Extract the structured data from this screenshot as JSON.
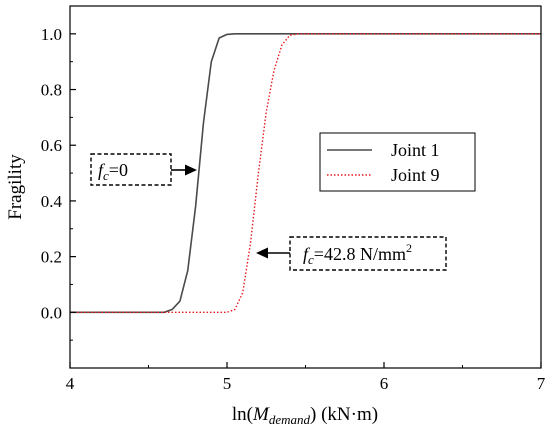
{
  "chart_data": {
    "type": "line",
    "xlabel_parts": {
      "pre": "ln(",
      "var": "M",
      "sub": "demand",
      "post": ") (kN·m)"
    },
    "ylabel": "Fragility",
    "xlim": [
      4,
      7
    ],
    "ylim": [
      -0.2,
      1.1
    ],
    "xticks": [
      4,
      5,
      6,
      7
    ],
    "yticks": [
      0.0,
      0.2,
      0.4,
      0.6,
      0.8,
      1.0
    ],
    "xtick_labels": [
      "4",
      "5",
      "6",
      "7"
    ],
    "ytick_labels": [
      "0.0",
      "0.2",
      "0.4",
      "0.6",
      "0.8",
      "1.0"
    ],
    "grid": false,
    "legend_position": "center-right",
    "series": [
      {
        "name": "Joint 1",
        "color": "#4a4a4a",
        "style": "solid",
        "x": [
          4.0,
          4.6,
          4.65,
          4.7,
          4.75,
          4.8,
          4.85,
          4.9,
          4.95,
          5.0,
          5.05,
          5.1,
          5.2,
          5.4,
          6.0,
          7.0
        ],
        "y": [
          0.0,
          0.0,
          0.01,
          0.04,
          0.15,
          0.38,
          0.68,
          0.9,
          0.985,
          0.998,
          1.0,
          1.0,
          1.0,
          1.0,
          1.0,
          1.0
        ]
      },
      {
        "name": "Joint 9",
        "color": "#e8191c",
        "style": "dotted",
        "x": [
          4.0,
          5.0,
          5.05,
          5.1,
          5.15,
          5.2,
          5.25,
          5.3,
          5.35,
          5.4,
          5.45,
          5.5,
          6.0,
          7.0
        ],
        "y": [
          0.0,
          0.0,
          0.01,
          0.07,
          0.25,
          0.5,
          0.72,
          0.87,
          0.96,
          0.995,
          1.0,
          1.0,
          1.0,
          1.0
        ]
      }
    ],
    "annotations": [
      {
        "id": "ann1",
        "var": "f",
        "sub": "c",
        "value": "=0"
      },
      {
        "id": "ann2",
        "var": "f",
        "sub": "c",
        "value": "=42.8 N/mm",
        "sup": "2"
      }
    ]
  }
}
